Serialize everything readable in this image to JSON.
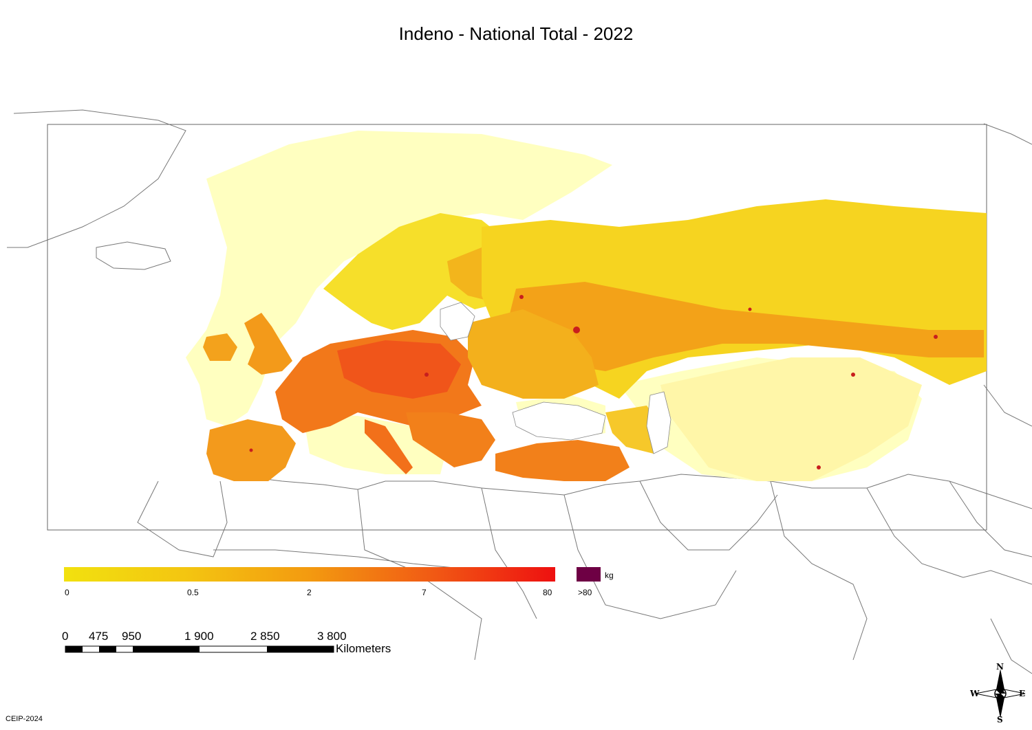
{
  "title": "Indeno - National Total - 2022",
  "legend": {
    "ticks": [
      "0",
      "0.5",
      "2",
      "7",
      "80"
    ],
    "over_label": ">80",
    "unit": "kg",
    "colors": {
      "low": "#f2e10f",
      "mid": "#f39a10",
      "high": "#ee1010",
      "over": "#6e0044",
      "sea": "#ffffc0"
    }
  },
  "scale_bar": {
    "labels": [
      "0",
      "475",
      "950",
      "1 900",
      "2 850",
      "3 800"
    ],
    "unit": "Kilometers"
  },
  "compass": {
    "n": "N",
    "s": "S",
    "e": "E",
    "w": "W"
  },
  "credit": "CEIP-2024"
}
